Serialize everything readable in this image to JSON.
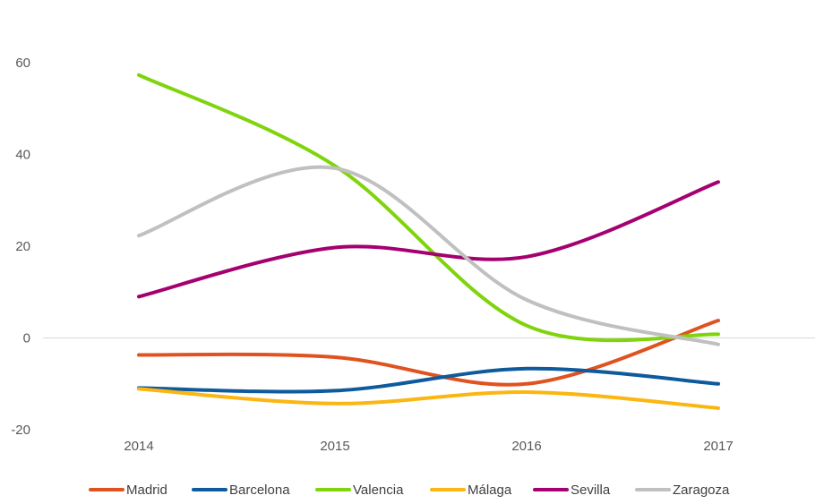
{
  "chart_data": {
    "type": "line",
    "smooth": true,
    "x": [
      "2014",
      "2015",
      "2016",
      "2017"
    ],
    "ylim": [
      -20,
      60
    ],
    "yticks": [
      -20,
      0,
      20,
      40,
      60
    ],
    "grid": false,
    "zero_line": true,
    "legend": "bottom",
    "series": [
      {
        "name": "Madrid",
        "color": "#e0521f",
        "values": [
          -3.7,
          -4.2,
          -10.0,
          3.8
        ]
      },
      {
        "name": "Barcelona",
        "color": "#0e5a9c",
        "values": [
          -10.9,
          -11.5,
          -6.7,
          -10.0
        ]
      },
      {
        "name": "Valencia",
        "color": "#7fd40c",
        "values": [
          57.3,
          37.5,
          2.7,
          0.8
        ]
      },
      {
        "name": "Málaga",
        "color": "#fbb612",
        "values": [
          -11.1,
          -14.3,
          -11.8,
          -15.3
        ]
      },
      {
        "name": "Sevilla",
        "color": "#a50070",
        "values": [
          9.0,
          19.7,
          17.7,
          34.0
        ]
      },
      {
        "name": "Zaragoza",
        "color": "#c0c0c0",
        "values": [
          22.3,
          37.0,
          8.3,
          -1.4
        ]
      }
    ]
  }
}
